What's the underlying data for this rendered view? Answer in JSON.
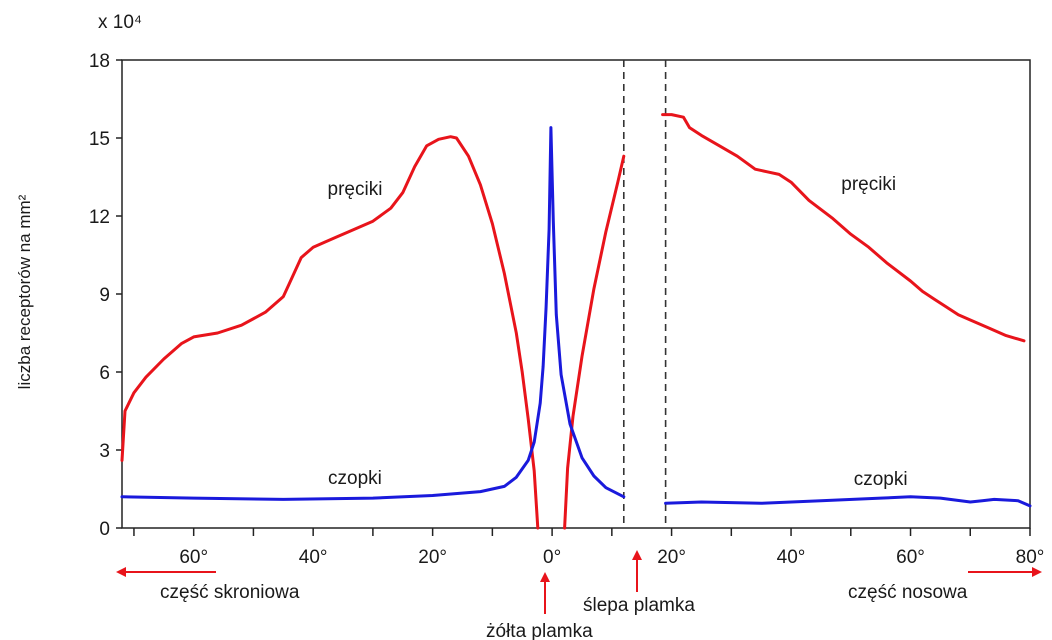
{
  "chart_data": {
    "type": "line",
    "title": "",
    "xlabel": "",
    "ylabel": "liczba receptorów na mm²",
    "y_multiplier": "x 10⁴",
    "xlim": [
      -72,
      80
    ],
    "ylim": [
      0,
      18
    ],
    "grid": false,
    "yticks": [
      0,
      3,
      6,
      9,
      12,
      15,
      18
    ],
    "xticks": [
      {
        "value": -60,
        "label": "60°"
      },
      {
        "value": -40,
        "label": "40°"
      },
      {
        "value": -20,
        "label": "20°"
      },
      {
        "value": 0,
        "label": "0°"
      },
      {
        "value": 20,
        "label": "20°"
      },
      {
        "value": 40,
        "label": "40°"
      },
      {
        "value": 60,
        "label": "60°"
      },
      {
        "value": 80,
        "label": "80°"
      }
    ],
    "blind_spot_range": [
      12,
      19
    ],
    "colors": {
      "rods": "#e8141b",
      "cones": "#1a1adc",
      "arrows": "#e8141b"
    },
    "series": [
      {
        "name": "pręciki",
        "label": "pręciki",
        "color": "#e8141b",
        "segments": [
          [
            [
              -72,
              2.6
            ],
            [
              -71.5,
              4.5
            ],
            [
              -70,
              5.2
            ],
            [
              -68,
              5.8
            ],
            [
              -65,
              6.5
            ],
            [
              -62,
              7.1
            ],
            [
              -60,
              7.35
            ],
            [
              -56,
              7.5
            ],
            [
              -52,
              7.8
            ],
            [
              -48,
              8.3
            ],
            [
              -45,
              8.9
            ],
            [
              -44,
              9.4
            ],
            [
              -42,
              10.4
            ],
            [
              -40,
              10.8
            ],
            [
              -38,
              11.0
            ],
            [
              -36,
              11.2
            ],
            [
              -34,
              11.4
            ],
            [
              -30,
              11.8
            ],
            [
              -27,
              12.3
            ],
            [
              -25,
              12.9
            ],
            [
              -23,
              13.9
            ],
            [
              -21,
              14.7
            ],
            [
              -19,
              14.95
            ],
            [
              -17,
              15.05
            ],
            [
              -16,
              15.0
            ],
            [
              -14,
              14.3
            ],
            [
              -12,
              13.2
            ],
            [
              -10,
              11.7
            ],
            [
              -8,
              9.8
            ],
            [
              -6,
              7.5
            ],
            [
              -5,
              6.0
            ],
            [
              -4,
              4.2
            ],
            [
              -3,
              2.2
            ],
            [
              -2.4,
              0
            ]
          ],
          [
            [
              2.1,
              0
            ],
            [
              2.6,
              2.3
            ],
            [
              3.5,
              4.3
            ],
            [
              5,
              6.6
            ],
            [
              7,
              9.2
            ],
            [
              9,
              11.4
            ],
            [
              11,
              13.3
            ],
            [
              12,
              14.3
            ]
          ],
          [
            [
              18.5,
              15.9
            ],
            [
              20,
              15.9
            ],
            [
              22,
              15.8
            ],
            [
              23,
              15.4
            ],
            [
              25,
              15.1
            ],
            [
              28,
              14.7
            ],
            [
              31,
              14.3
            ],
            [
              34,
              13.8
            ],
            [
              36,
              13.7
            ],
            [
              38,
              13.6
            ],
            [
              40,
              13.3
            ],
            [
              43,
              12.6
            ],
            [
              47,
              11.9
            ],
            [
              50,
              11.3
            ],
            [
              53,
              10.8
            ],
            [
              56,
              10.2
            ],
            [
              60,
              9.5
            ],
            [
              62,
              9.1
            ],
            [
              64,
              8.8
            ],
            [
              66,
              8.5
            ],
            [
              68,
              8.2
            ],
            [
              70,
              8.0
            ],
            [
              73,
              7.7
            ],
            [
              76,
              7.4
            ],
            [
              79,
              7.2
            ]
          ]
        ]
      },
      {
        "name": "czopki",
        "label": "czopki",
        "color": "#1a1adc",
        "segments": [
          [
            [
              -72,
              1.2
            ],
            [
              -60,
              1.15
            ],
            [
              -45,
              1.1
            ],
            [
              -30,
              1.15
            ],
            [
              -20,
              1.25
            ],
            [
              -12,
              1.4
            ],
            [
              -8,
              1.6
            ],
            [
              -6,
              1.95
            ],
            [
              -4,
              2.6
            ],
            [
              -3,
              3.3
            ],
            [
              -2,
              4.8
            ],
            [
              -1.5,
              6.2
            ],
            [
              -1,
              8.5
            ],
            [
              -0.5,
              11.5
            ],
            [
              -0.2,
              15.4
            ],
            [
              0.2,
              11.8
            ],
            [
              0.7,
              8.2
            ],
            [
              1.5,
              5.9
            ],
            [
              3,
              4.0
            ],
            [
              5,
              2.7
            ],
            [
              7,
              2.0
            ],
            [
              9,
              1.55
            ],
            [
              12,
              1.2
            ]
          ],
          [
            [
              19,
              0.95
            ],
            [
              25,
              1.0
            ],
            [
              35,
              0.95
            ],
            [
              45,
              1.05
            ],
            [
              55,
              1.15
            ],
            [
              60,
              1.2
            ],
            [
              65,
              1.15
            ],
            [
              70,
              1.0
            ],
            [
              72,
              1.05
            ],
            [
              74,
              1.1
            ],
            [
              78,
              1.05
            ],
            [
              80,
              0.85
            ]
          ]
        ]
      }
    ],
    "series_labels": [
      {
        "series": 0,
        "text": "pręciki",
        "x": -33,
        "y": 12.8
      },
      {
        "series": 0,
        "text": "pręciki",
        "x": 53,
        "y": 13.0
      },
      {
        "series": 1,
        "text": "czopki",
        "x": -33,
        "y": 1.7
      },
      {
        "series": 1,
        "text": "czopki",
        "x": 55,
        "y": 1.65
      }
    ]
  },
  "annotations": {
    "temporal": "część skroniowa",
    "nasal": "część nosowa",
    "fovea": "żółta plamka",
    "blind_spot": "ślepa plamka"
  }
}
